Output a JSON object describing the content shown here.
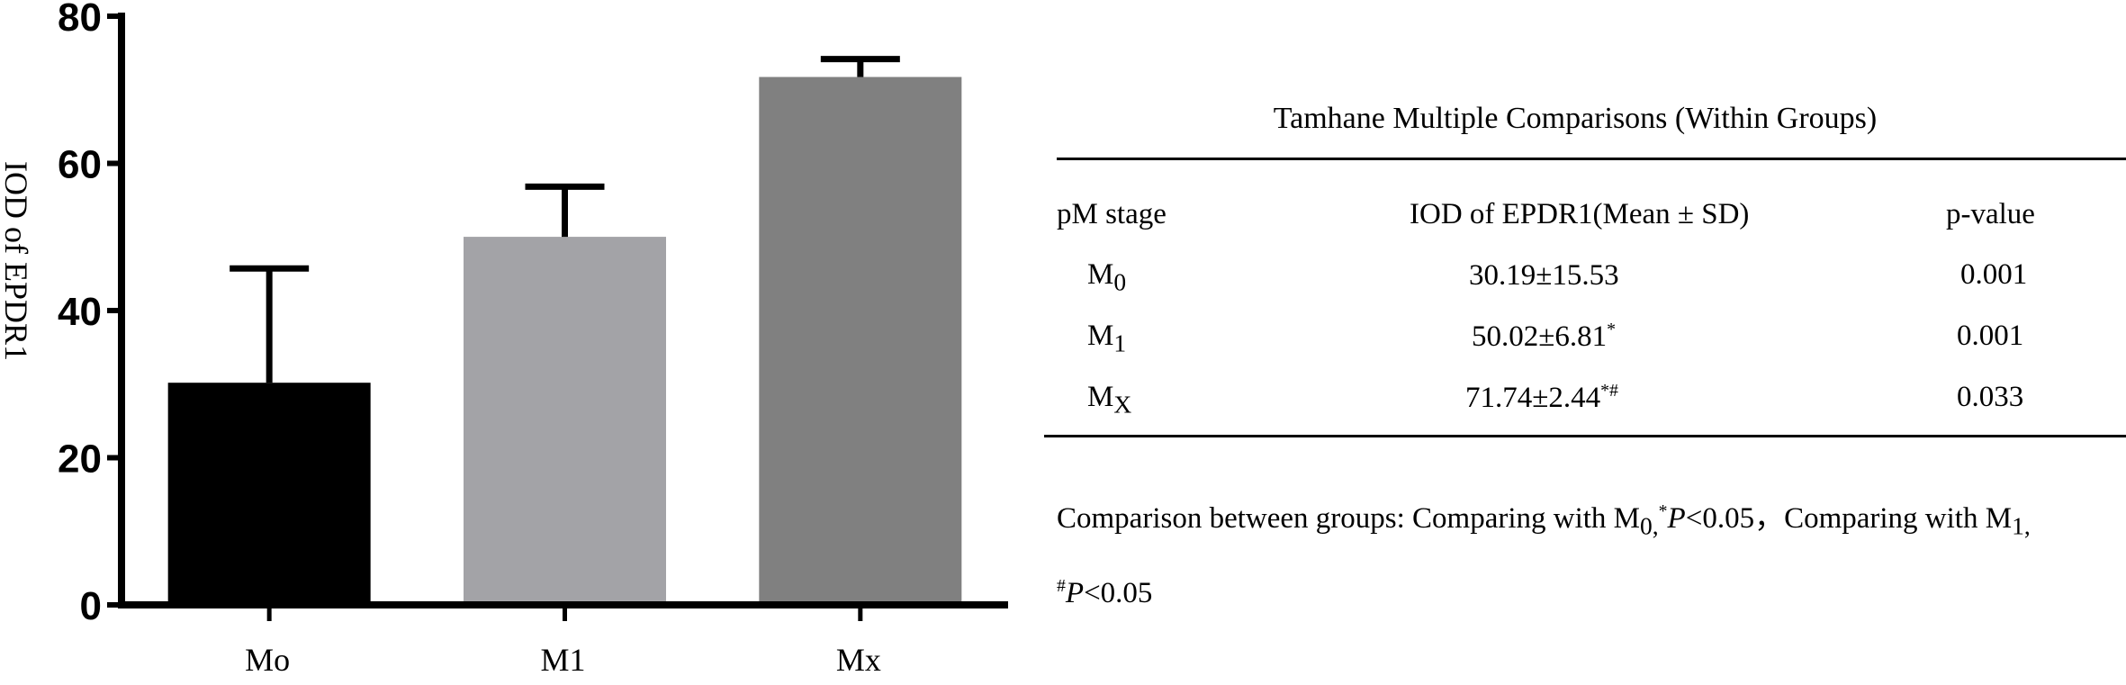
{
  "chart_data": {
    "type": "bar",
    "categories": [
      "Mo",
      "M1",
      "Mx"
    ],
    "values": [
      30.19,
      50.02,
      71.74
    ],
    "error_bars": [
      15.53,
      6.81,
      2.44
    ],
    "ylabel": "IOD of EPDR1",
    "ylim": [
      0,
      80
    ],
    "yticks": [
      0,
      20,
      40,
      60,
      80
    ],
    "colors": [
      "#000000",
      "#a3a3a7",
      "#808080"
    ]
  },
  "table": {
    "title": "Tamhane Multiple Comparisons (Within Groups)",
    "headers": [
      "pM stage",
      "IOD of EPDR1(Mean ± SD)",
      "p-value"
    ],
    "rows": [
      {
        "stage": "M",
        "sub": "0",
        "mean": "30.19±15.53",
        "mark": "",
        "p": "0.001"
      },
      {
        "stage": "M",
        "sub": "1",
        "mean": "50.02±6.81",
        "mark": "*",
        "p": "0.001"
      },
      {
        "stage": "M",
        "sub": "X",
        "mean": "71.74±2.44",
        "mark": "*#",
        "p": "0.033"
      }
    ],
    "note_line1_a": "Comparison between groups: Comparing with M",
    "note_line1_sub_a": "0,",
    "note_line1_mark_a": "*",
    "note_line1_p_a": "P",
    "note_line1_b": "<0.05，Comparing with M",
    "note_line1_sub_b": "1,",
    "note_line2_mark": "#",
    "note_line2_p": "P",
    "note_line2_rest": "<0.05"
  }
}
